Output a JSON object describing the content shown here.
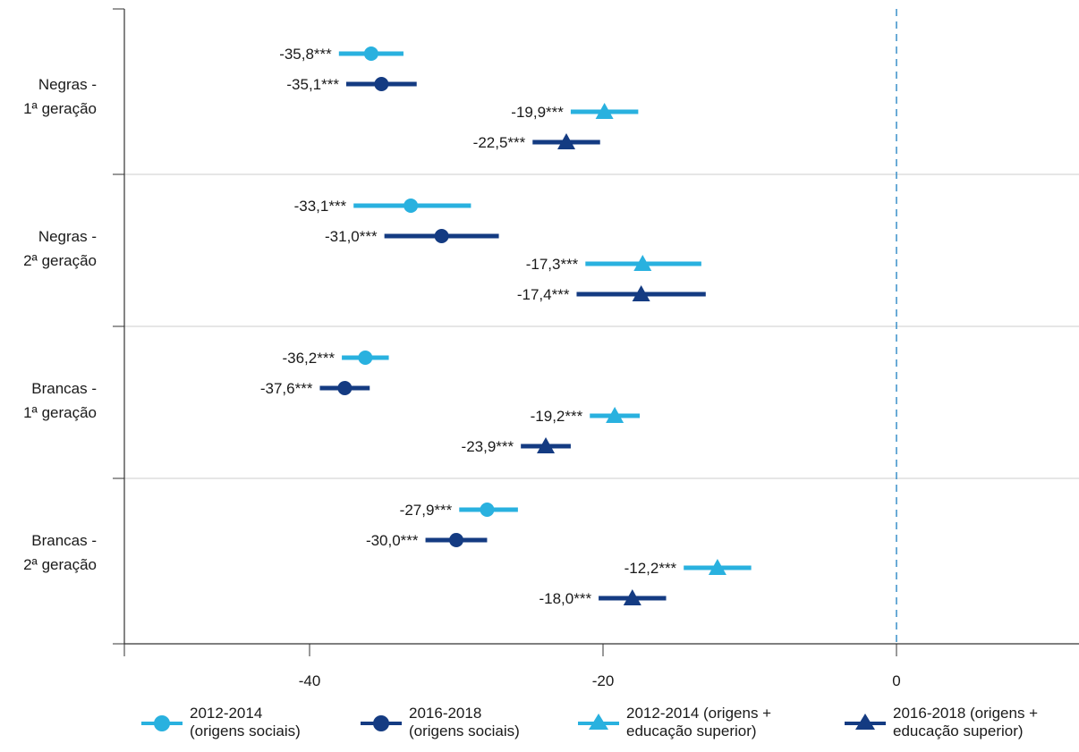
{
  "chart_data": {
    "type": "scatter",
    "subtype": "dot-and-whisker",
    "title": "",
    "xlabel": "",
    "ylabel": "",
    "xlim": [
      -52,
      12.5
    ],
    "xticks": [
      -40,
      -20,
      0
    ],
    "xtick_labels": [
      "-40",
      "-20",
      "0"
    ],
    "reference_line": 0,
    "grid": "horizontal group separators",
    "legend_position": "bottom",
    "groups": [
      {
        "label_line1": "Negras -",
        "label_line2": "1ª  geração"
      },
      {
        "label_line1": "Negras -",
        "label_line2": "2ª  geração"
      },
      {
        "label_line1": "Brancas -",
        "label_line2": "1ª  geração"
      },
      {
        "label_line1": "Brancas -",
        "label_line2": "2ª  geração"
      }
    ],
    "series": [
      {
        "name_line1": "2012-2014",
        "name_line2": "(origens sociais)",
        "color": "#29b1df",
        "marker": "circle",
        "values": [
          -35.8,
          -33.1,
          -36.2,
          -27.9
        ],
        "ci_low": [
          -38.0,
          -37.0,
          -37.8,
          -29.8
        ],
        "ci_high": [
          -33.6,
          -29.0,
          -34.6,
          -25.8
        ],
        "labels": [
          "-35,8***",
          "-33,1***",
          "-36,2***",
          "-27,9***"
        ]
      },
      {
        "name_line1": "2016-2018",
        "name_line2": "(origens sociais)",
        "color": "#143b82",
        "marker": "circle",
        "values": [
          -35.1,
          -31.0,
          -37.6,
          -30.0
        ],
        "ci_low": [
          -37.5,
          -34.9,
          -39.3,
          -32.1
        ],
        "ci_high": [
          -32.7,
          -27.1,
          -35.9,
          -27.9
        ],
        "labels": [
          "-35,1***",
          "-31,0***",
          "-37,6***",
          "-30,0***"
        ]
      },
      {
        "name_line1": "2012-2014 (origens +",
        "name_line2": "educação superior)",
        "color": "#29b1df",
        "marker": "triangle",
        "values": [
          -19.9,
          -17.3,
          -19.2,
          -12.2
        ],
        "ci_low": [
          -22.2,
          -21.2,
          -20.9,
          -14.5
        ],
        "ci_high": [
          -17.6,
          -13.3,
          -17.5,
          -9.9
        ],
        "labels": [
          "-19,9***",
          "-17,3***",
          "-19,2***",
          "-12,2***"
        ]
      },
      {
        "name_line1": "2016-2018 (origens +",
        "name_line2": "educação superior)",
        "color": "#143b82",
        "marker": "triangle",
        "values": [
          -22.5,
          -17.4,
          -23.9,
          -18.0
        ],
        "ci_low": [
          -24.8,
          -21.8,
          -25.6,
          -20.3
        ],
        "ci_high": [
          -20.2,
          -13.0,
          -22.2,
          -15.7
        ],
        "labels": [
          "-22,5***",
          "-17,4***",
          "-23,9***",
          "-18,0***"
        ]
      }
    ]
  }
}
